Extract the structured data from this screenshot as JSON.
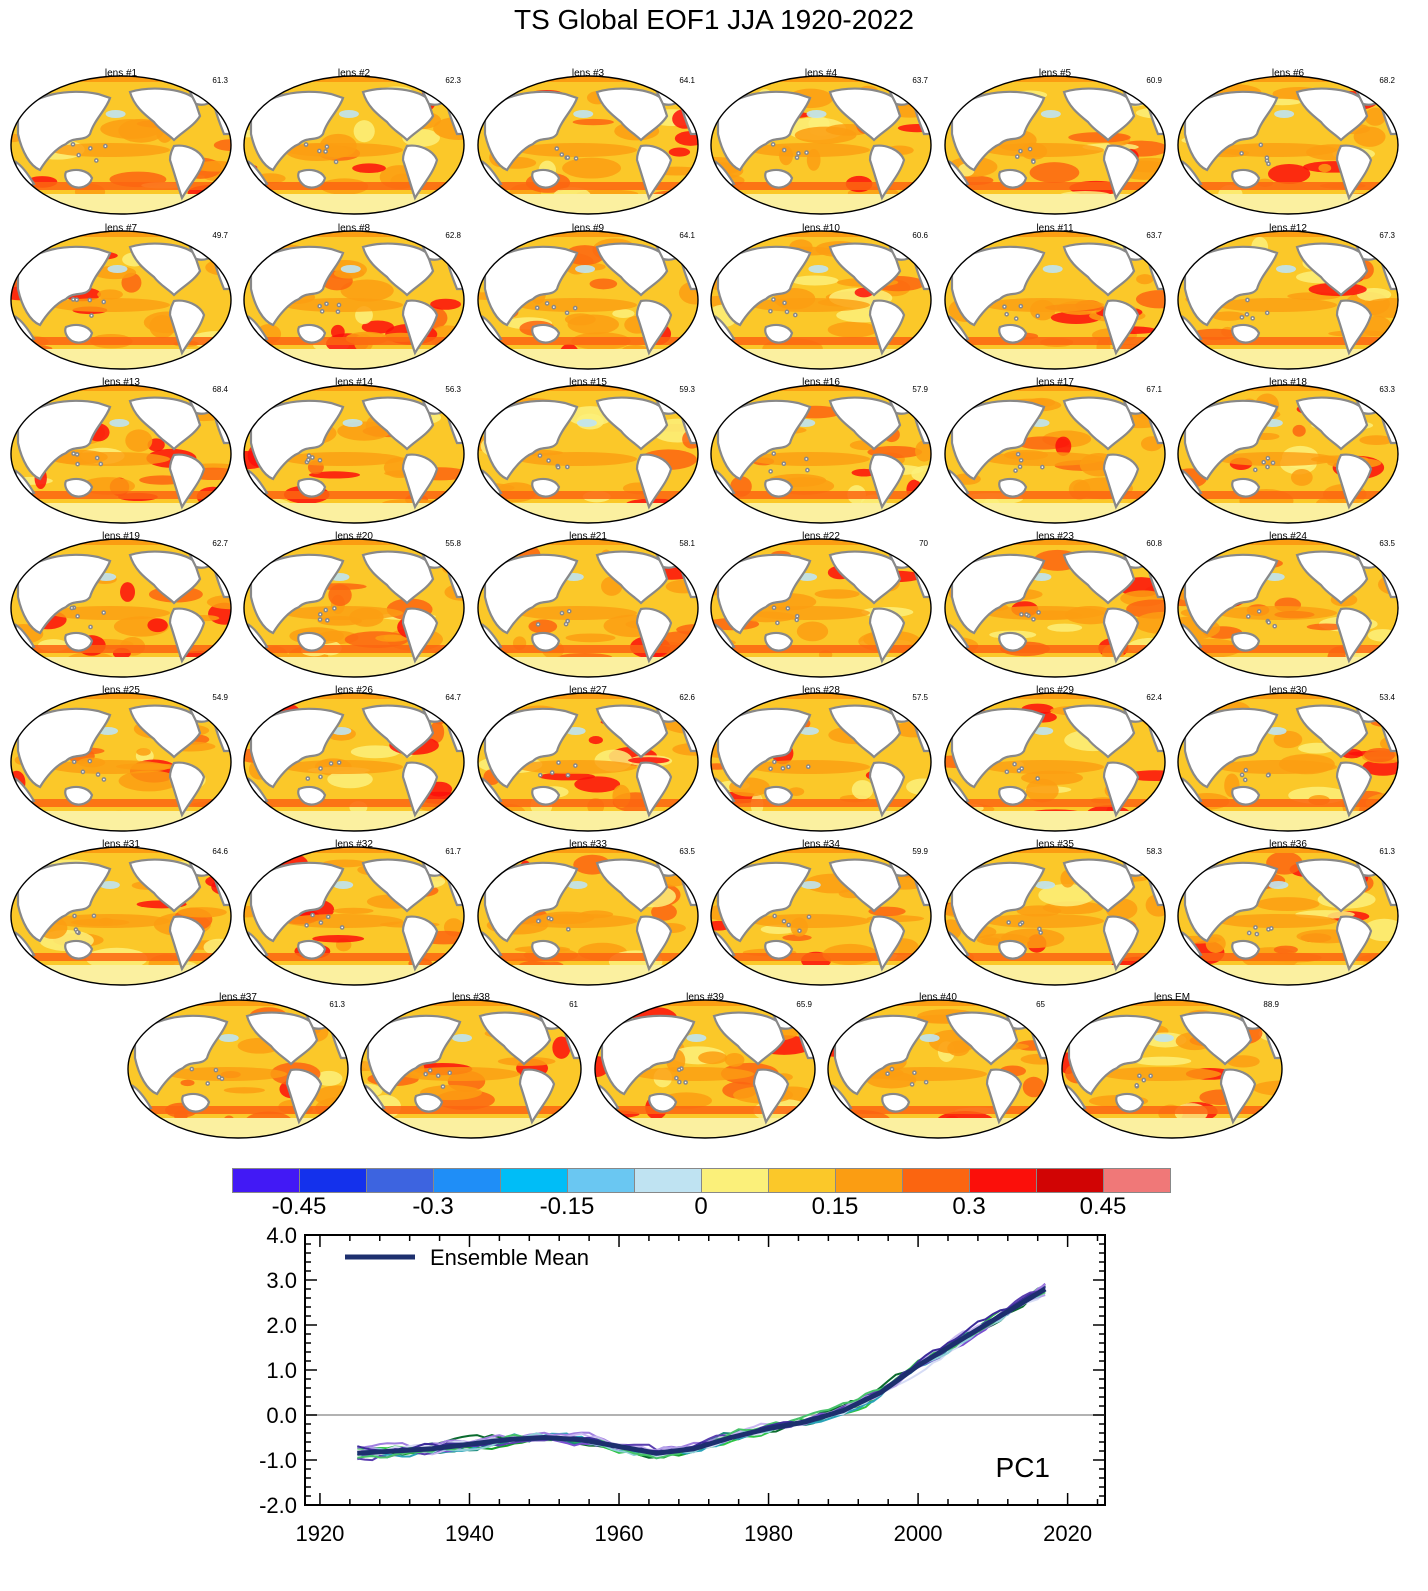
{
  "title": "TS Global EOF1 JJA 1920-2022",
  "panels": [
    {
      "label": "lens #1",
      "pct": "61.3"
    },
    {
      "label": "lens #2",
      "pct": "62.3"
    },
    {
      "label": "lens #3",
      "pct": "64.1"
    },
    {
      "label": "lens #4",
      "pct": "63.7"
    },
    {
      "label": "lens #5",
      "pct": "60.9"
    },
    {
      "label": "lens #6",
      "pct": "68.2"
    },
    {
      "label": "lens #7",
      "pct": "49.7"
    },
    {
      "label": "lens #8",
      "pct": "62.8"
    },
    {
      "label": "lens #9",
      "pct": "64.1"
    },
    {
      "label": "lens #10",
      "pct": "60.6"
    },
    {
      "label": "lens #11",
      "pct": "63.7"
    },
    {
      "label": "lens #12",
      "pct": "67.3"
    },
    {
      "label": "lens #13",
      "pct": "68.4"
    },
    {
      "label": "lens #14",
      "pct": "56.3"
    },
    {
      "label": "lens #15",
      "pct": "59.3"
    },
    {
      "label": "lens #16",
      "pct": "57.9"
    },
    {
      "label": "lens #17",
      "pct": "67.1"
    },
    {
      "label": "lens #18",
      "pct": "63.3"
    },
    {
      "label": "lens #19",
      "pct": "62.7"
    },
    {
      "label": "lens #20",
      "pct": "55.8"
    },
    {
      "label": "lens #21",
      "pct": "58.1"
    },
    {
      "label": "lens #22",
      "pct": "70"
    },
    {
      "label": "lens #23",
      "pct": "60.8"
    },
    {
      "label": "lens #24",
      "pct": "63.5"
    },
    {
      "label": "lens #25",
      "pct": "54.9"
    },
    {
      "label": "lens #26",
      "pct": "64.7"
    },
    {
      "label": "lens #27",
      "pct": "62.6"
    },
    {
      "label": "lens #28",
      "pct": "57.5"
    },
    {
      "label": "lens #29",
      "pct": "62.4"
    },
    {
      "label": "lens #30",
      "pct": "53.4"
    },
    {
      "label": "lens #31",
      "pct": "64.6"
    },
    {
      "label": "lens #32",
      "pct": "61.7"
    },
    {
      "label": "lens #33",
      "pct": "63.5"
    },
    {
      "label": "lens #34",
      "pct": "59.9"
    },
    {
      "label": "lens #35",
      "pct": "58.3"
    },
    {
      "label": "lens #36",
      "pct": "61.3"
    },
    {
      "label": "lens #37",
      "pct": "61.3"
    },
    {
      "label": "lens #38",
      "pct": "61"
    },
    {
      "label": "lens #39",
      "pct": "65.9"
    },
    {
      "label": "lens #40",
      "pct": "65"
    },
    {
      "label": "lens EM",
      "pct": "88.9"
    }
  ],
  "colorbar": {
    "colors": [
      "#4219f5",
      "#1431ec",
      "#3d64e0",
      "#1f8ef7",
      "#00bdf7",
      "#6ac7f2",
      "#bfe3f2",
      "#fbf07a",
      "#fbc829",
      "#fb9d12",
      "#fb6510",
      "#fb0f0a",
      "#d10404",
      "#f07878"
    ],
    "tick_labels": [
      "-0.45",
      "-0.3",
      "-0.15",
      "0",
      "0.15",
      "0.3",
      "0.45"
    ]
  },
  "map_colors": {
    "land": "#ffffff",
    "coast": "#888888",
    "ice": "#fbf0a0"
  },
  "chart_data": {
    "type": "line",
    "annotation": "PC1",
    "legend": {
      "label": "Ensemble Mean",
      "color": "#1d2f6e",
      "placement": "top-left"
    },
    "xlim": [
      1918,
      2025
    ],
    "ylim": [
      -2.0,
      4.0
    ],
    "x_ticks": [
      1920,
      1940,
      1960,
      1980,
      2000,
      2020
    ],
    "y_ticks": [
      "4.0",
      "3.0",
      "2.0",
      "1.0",
      "0.0",
      "-1.0",
      "-2.0"
    ],
    "zero_line": true,
    "ensemble_mean": {
      "name": "Ensemble Mean",
      "x": [
        1925,
        1930,
        1935,
        1940,
        1945,
        1950,
        1955,
        1960,
        1965,
        1970,
        1975,
        1980,
        1985,
        1990,
        1995,
        2000,
        2005,
        2010,
        2017
      ],
      "y": [
        -0.85,
        -0.8,
        -0.75,
        -0.65,
        -0.55,
        -0.5,
        -0.55,
        -0.7,
        -0.85,
        -0.75,
        -0.5,
        -0.3,
        -0.15,
        0.1,
        0.5,
        1.1,
        1.6,
        2.1,
        2.8
      ]
    },
    "member_colors": [
      "#0a6b2e",
      "#15a02a",
      "#2ec445",
      "#1b8a7a",
      "#2aa3b8",
      "#7b4fd1",
      "#a07fe0",
      "#c8b6f0",
      "#d6dcf5",
      "#5b3fb0",
      "#b4a0e8",
      "#8fd0d8",
      "#47c26a",
      "#3c2b9a"
    ]
  }
}
